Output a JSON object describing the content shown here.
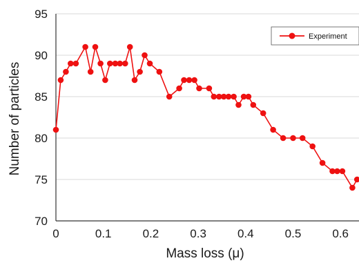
{
  "chart_data": {
    "type": "line",
    "xlabel": "Mass loss (μ)",
    "ylabel": "Number of particles",
    "xlim": [
      0,
      0.65
    ],
    "ylim": [
      70,
      95
    ],
    "xticks": [
      "0",
      "0.1",
      "0.2",
      "0.3",
      "0.4",
      "0.5",
      "0.6"
    ],
    "yticks": [
      "70",
      "75",
      "80",
      "85",
      "90",
      "95"
    ],
    "grid": "horizontal",
    "legend_position": "top-right",
    "colors": {
      "series": "#ee1111",
      "grid": "#d9d9d9",
      "axis": "#333333"
    },
    "series": [
      {
        "name": "Experiment",
        "x": [
          0,
          0.01,
          0.021,
          0.031,
          0.042,
          0.062,
          0.073,
          0.083,
          0.094,
          0.104,
          0.114,
          0.125,
          0.135,
          0.146,
          0.156,
          0.166,
          0.177,
          0.187,
          0.198,
          0.218,
          0.239,
          0.26,
          0.27,
          0.281,
          0.292,
          0.302,
          0.323,
          0.333,
          0.344,
          0.354,
          0.364,
          0.375,
          0.385,
          0.396,
          0.406,
          0.416,
          0.437,
          0.458,
          0.479,
          0.5,
          0.52,
          0.541,
          0.562,
          0.583,
          0.593,
          0.604,
          0.625,
          0.635
        ],
        "y": [
          81,
          87,
          88,
          89,
          89,
          91,
          88,
          91,
          89,
          87,
          89,
          89,
          89,
          89,
          91,
          87,
          88,
          90,
          89,
          88,
          85,
          86,
          87,
          87,
          87,
          86,
          86,
          85,
          85,
          85,
          85,
          85,
          84,
          85,
          85,
          84,
          83,
          81,
          80,
          80,
          80,
          79,
          77,
          76,
          76,
          76,
          74,
          75
        ]
      }
    ]
  }
}
